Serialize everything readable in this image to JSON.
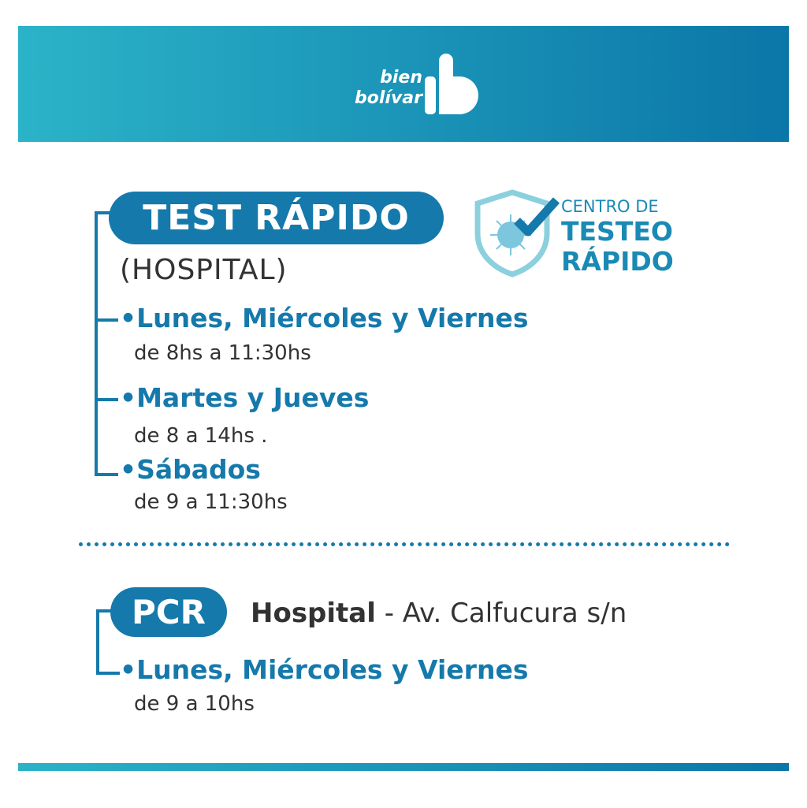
{
  "header": {
    "logo_line1": "bien",
    "logo_line2": "bolívar",
    "gradient": [
      "#2bb3c8",
      "#0b76a8"
    ]
  },
  "badge": {
    "line1": "CENTRO DE",
    "line2": "TESTEO",
    "line3": "RÁPIDO",
    "icon": "shield-check-virus-icon"
  },
  "test_rapido": {
    "title": "TEST RÁPIDO",
    "location": "(HOSPITAL)",
    "schedules": [
      {
        "days": "•Lunes, Miércoles y Viernes",
        "hours": "de 8hs a 11:30hs"
      },
      {
        "days": "•Martes y Jueves",
        "hours": "de 8 a 14hs ."
      },
      {
        "days": "•Sábados",
        "hours": "de 9 a 11:30hs"
      }
    ]
  },
  "pcr": {
    "title": "PCR",
    "place": "Hospital",
    "address": " - Av. Calfucura s/n",
    "schedules": [
      {
        "days": "•Lunes, Miércoles y Viernes",
        "hours": "de 9 a 10hs"
      }
    ]
  },
  "colors": {
    "accent": "#1579ab",
    "text": "#333333"
  }
}
